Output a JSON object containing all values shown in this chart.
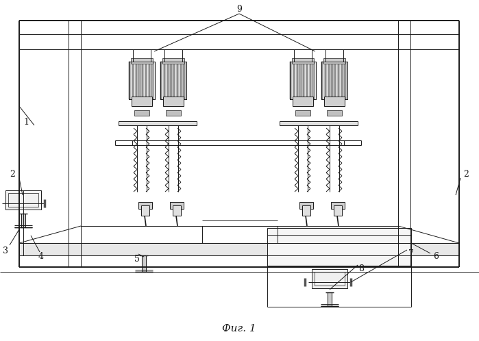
{
  "bg_color": "#ffffff",
  "line_color": "#1a1a1a",
  "lw": 0.7,
  "tlw": 1.4,
  "fig_label": "Фиг. 1"
}
